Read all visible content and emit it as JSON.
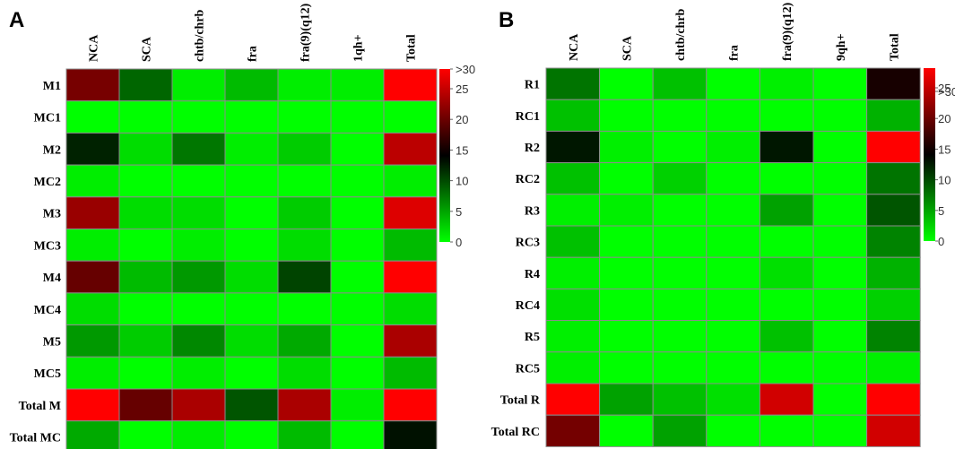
{
  "chart_data": [
    {
      "type": "heatmap",
      "panel": "A",
      "columns": [
        "NCA",
        "SCA",
        "chtb/chrb",
        "fra",
        "fra(9)(q12)",
        "1qh+",
        "Total"
      ],
      "rows": [
        "M1",
        "MC1",
        "M2",
        "MC2",
        "M3",
        "MC3",
        "M4",
        "MC4",
        "M5",
        "MC5",
        "Total M",
        "Total MC"
      ],
      "values": [
        [
          22,
          9,
          1,
          4,
          1,
          1,
          30
        ],
        [
          0,
          0,
          0,
          0,
          0,
          0,
          0
        ],
        [
          13,
          2,
          8,
          1,
          3,
          0,
          26
        ],
        [
          1,
          0,
          0,
          0,
          0,
          0,
          1
        ],
        [
          24,
          2,
          2,
          0,
          3,
          0,
          28
        ],
        [
          1,
          0,
          1,
          0,
          2,
          0,
          4
        ],
        [
          21,
          4,
          6,
          2,
          11,
          0,
          30
        ],
        [
          2,
          0,
          0,
          0,
          0,
          0,
          2
        ],
        [
          6,
          3,
          7,
          2,
          5,
          0,
          25
        ],
        [
          1,
          0,
          1,
          0,
          2,
          0,
          4
        ],
        [
          30,
          21,
          25,
          10,
          25,
          1,
          30
        ],
        [
          5,
          0,
          1,
          0,
          4,
          0,
          14
        ]
      ],
      "colorbar": {
        "min": 0,
        "max": 30,
        "ticks": [
          "0",
          "5",
          "10",
          "15",
          "20",
          "25",
          ">30"
        ]
      }
    },
    {
      "type": "heatmap",
      "panel": "B",
      "columns": [
        "NCA",
        "SCA",
        "chtb/chrb",
        "fra",
        "fra(9)(q12)",
        "9qh+",
        "Total"
      ],
      "rows": [
        "R1",
        "RC1",
        "R2",
        "RC2",
        "R3",
        "RC3",
        "R4",
        "RC4",
        "R5",
        "RC5",
        "Total R",
        "Total RC"
      ],
      "values": [
        [
          9,
          0,
          4,
          0,
          1,
          0,
          18
        ],
        [
          4,
          0,
          0,
          0,
          0,
          0,
          5
        ],
        [
          15,
          1,
          0,
          1,
          15,
          0,
          33
        ],
        [
          4,
          0,
          3,
          0,
          0,
          0,
          9
        ],
        [
          1,
          1,
          0,
          0,
          6,
          0,
          11
        ],
        [
          4,
          0,
          0,
          0,
          0,
          0,
          8
        ],
        [
          1,
          0,
          0,
          0,
          2,
          0,
          5
        ],
        [
          2,
          0,
          0,
          0,
          0,
          0,
          3
        ],
        [
          1,
          0,
          0,
          0,
          4,
          0,
          8
        ],
        [
          1,
          0,
          0,
          0,
          0,
          0,
          1
        ],
        [
          33,
          6,
          4,
          2,
          30,
          0,
          33
        ],
        [
          24,
          0,
          6,
          0,
          0,
          0,
          30
        ]
      ],
      "colorbar": {
        "min": 0,
        "max": 33,
        "ticks": [
          "0",
          "5",
          "10",
          "15",
          "20",
          "25",
          ">30"
        ]
      }
    }
  ],
  "colors": {
    "low": "#00ff00",
    "mid": "#000000",
    "high": "#ff0000",
    "grid": "#8c8c8c"
  }
}
